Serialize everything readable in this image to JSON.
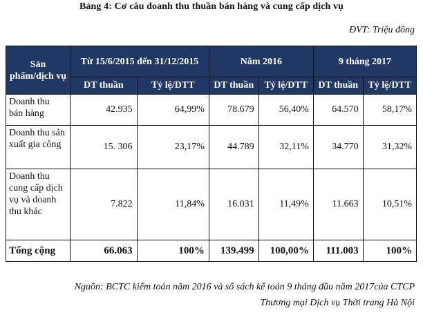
{
  "title": "Bảng 4:  Cơ câu doanh thu thuần bán hàng và cung cấp dịch vụ",
  "unit": "ĐVT: Triệu đồng",
  "header": {
    "product": "Sản phẩm/dịch vụ",
    "periods": [
      "Từ 15/6/2015 đến 31/12/2015",
      "Năm 2016",
      "9 tháng 2017"
    ],
    "sub": [
      "DT thuần",
      "Tỷ lệ/DTT",
      "DT thuần",
      "Tỷ lệ/DTT",
      "DT thuần",
      "Tỷ lệ/DTT"
    ]
  },
  "rows": [
    {
      "label": "Doanh thu bán hàng",
      "cells": [
        "42.935",
        "64,99%",
        "78.679",
        "56,40%",
        "64.570",
        "58,17%"
      ]
    },
    {
      "label": "Doanh thu sản xuất gia công",
      "cells": [
        "15. 306",
        "23,17%",
        "44.789",
        "32,11%",
        "34.770",
        "31,32%"
      ]
    },
    {
      "label": "Doanh thu cung cấp dịch vụ và doanh thu khác",
      "cells": [
        "7.822",
        "11,84%",
        "16.031",
        "11,49%",
        "11.663",
        "10,51%"
      ]
    }
  ],
  "total": {
    "label": "Tổng cộng",
    "cells": [
      "66.063",
      "100%",
      "139.499",
      "100,00%",
      "111.003",
      "100%"
    ]
  },
  "source": {
    "line1": "Nguồn: BCTC kiểm toán năm 2016 và sổ sách kế toán 9 tháng đầu năm 2017của CTCP",
    "line2": "Thương mại Dịch vụ Thời trang Hà Nội"
  }
}
